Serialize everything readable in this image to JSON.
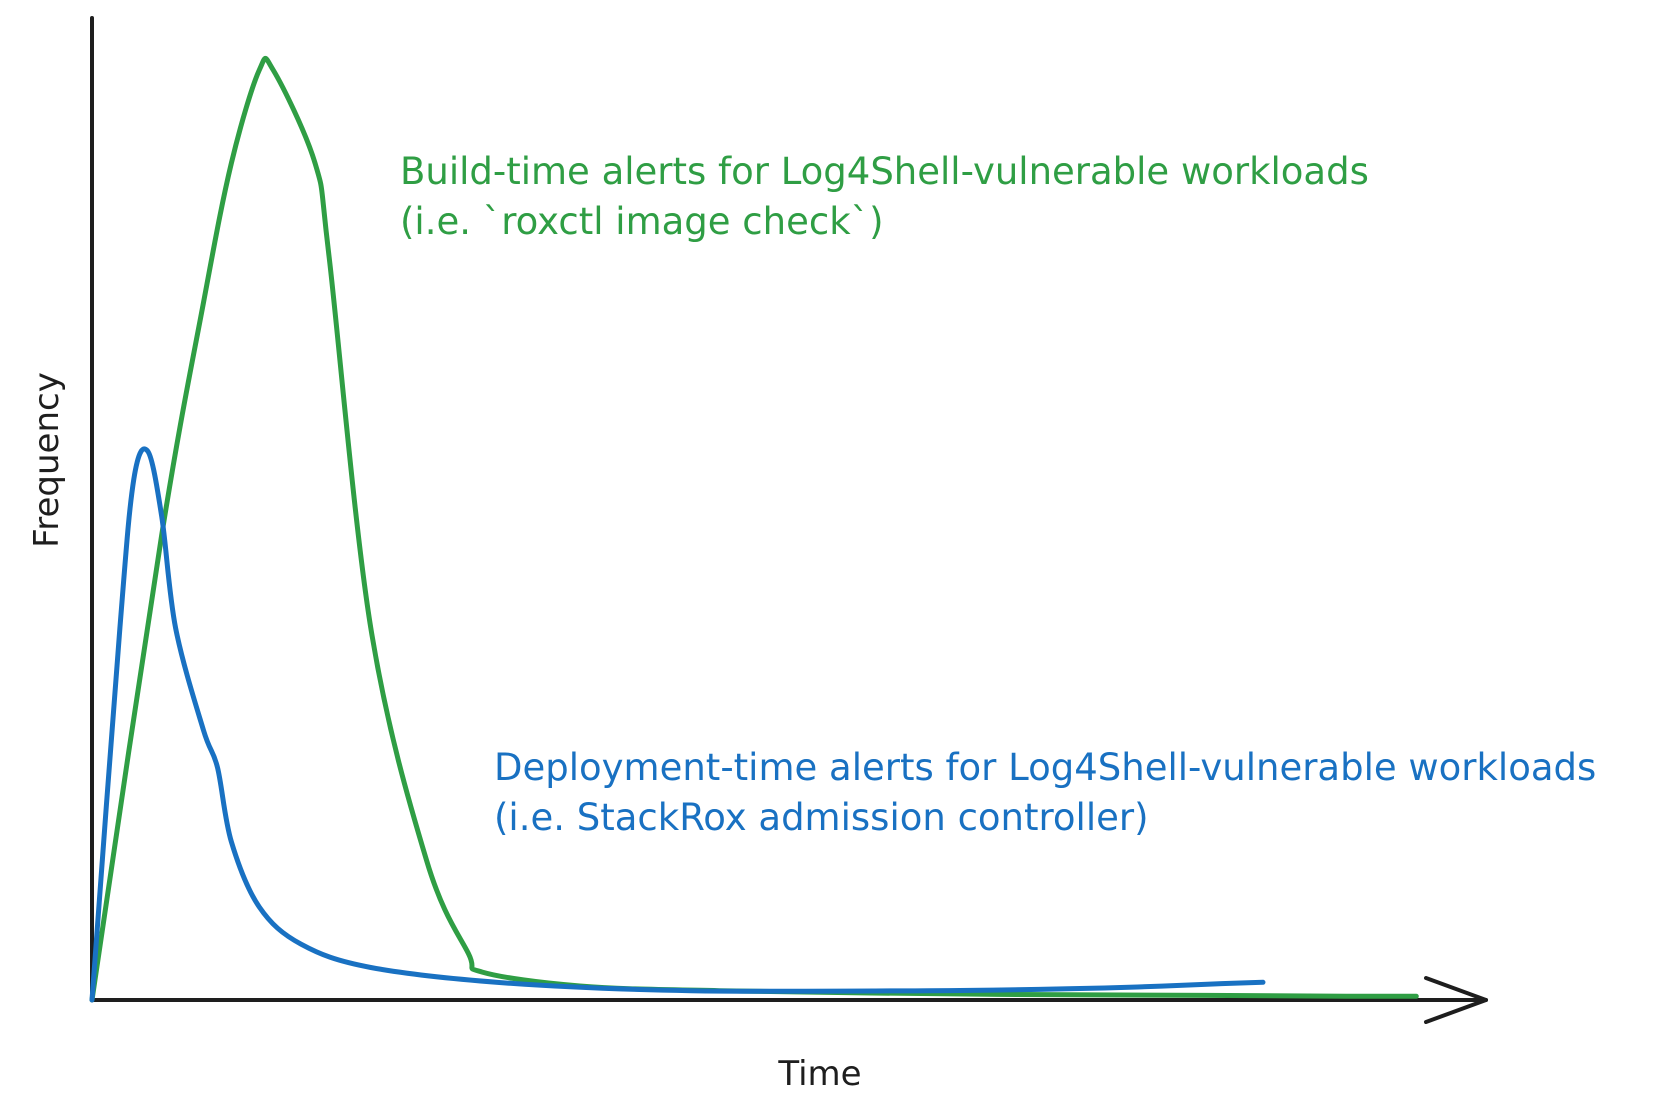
{
  "chart_data": {
    "type": "line",
    "title": "",
    "xlabel": "Time",
    "ylabel": "Frequency",
    "xlim": [
      0,
      100
    ],
    "ylim": [
      0,
      100
    ],
    "grid": false,
    "legend": "none",
    "series": [
      {
        "color": "#2f9e44",
        "x": [
          0,
          5,
          8,
          10,
          12,
          13,
          16,
          17,
          20,
          24,
          27,
          28,
          35,
          45,
          65,
          80,
          90,
          95
        ],
        "y": [
          0,
          50,
          75,
          90,
          100,
          100,
          90,
          80,
          40,
          15,
          5,
          3,
          1.5,
          1,
          0.6,
          0.5,
          0.4,
          0.4
        ]
      },
      {
        "color": "#1971c2",
        "x": [
          0,
          2,
          3,
          4,
          5,
          6,
          8,
          9,
          10,
          12,
          15,
          20,
          30,
          43,
          60,
          70,
          75,
          80,
          84
        ],
        "y": [
          0,
          40,
          56,
          59,
          52,
          40,
          29,
          25,
          17,
          10,
          6,
          3.5,
          1.8,
          1,
          1,
          1.2,
          1.4,
          1.7,
          1.9
        ]
      }
    ],
    "annotations": [
      {
        "color": "#2f9e44",
        "lines": [
          "Build-time alerts for Log4Shell-vulnerable workloads",
          "(i.e. `roxctl image check`)"
        ]
      },
      {
        "color": "#1971c2",
        "lines": [
          "Deployment-time alerts for Log4Shell-vulnerable workloads",
          "(i.e. StackRox admission controller)"
        ]
      }
    ]
  }
}
